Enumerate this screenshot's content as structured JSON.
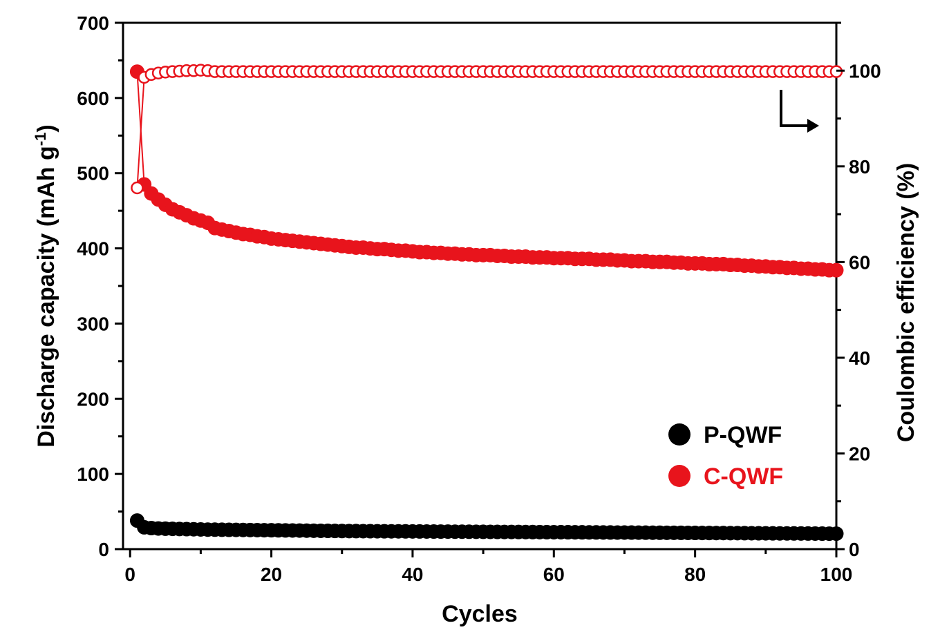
{
  "chart_data": {
    "type": "scatter",
    "xlabel": "Cycles",
    "ylabel_left": {
      "main": "Discharge capacity (mAh g",
      "superscript": "-1",
      "close": ")"
    },
    "ylabel_right": "Coulombic efficiency (%)",
    "xlim": [
      -1,
      100
    ],
    "ylim_left": [
      0,
      700
    ],
    "ylim_right": [
      0,
      110
    ],
    "x_ticks": [
      "0",
      "20",
      "40",
      "60",
      "80",
      "100"
    ],
    "y_left_ticks": [
      "0",
      "100",
      "200",
      "300",
      "400",
      "500",
      "600",
      "700"
    ],
    "y_right_ticks": [
      "0",
      "20",
      "40",
      "60",
      "80",
      "100"
    ],
    "x": [
      1,
      2,
      3,
      4,
      5,
      6,
      7,
      8,
      9,
      10,
      11,
      12,
      13,
      14,
      15,
      16,
      17,
      18,
      19,
      20,
      21,
      22,
      23,
      24,
      25,
      26,
      27,
      28,
      29,
      30,
      31,
      32,
      33,
      34,
      35,
      36,
      37,
      38,
      39,
      40,
      41,
      42,
      43,
      44,
      45,
      46,
      47,
      48,
      49,
      50,
      51,
      52,
      53,
      54,
      55,
      56,
      57,
      58,
      59,
      60,
      61,
      62,
      63,
      64,
      65,
      66,
      67,
      68,
      69,
      70,
      71,
      72,
      73,
      74,
      75,
      76,
      77,
      78,
      79,
      80,
      81,
      82,
      83,
      84,
      85,
      86,
      87,
      88,
      89,
      90,
      91,
      92,
      93,
      94,
      95,
      96,
      97,
      98,
      99,
      100
    ],
    "series": [
      {
        "name": "P-QWF",
        "axis": "left",
        "marker": "filled",
        "color": "#000000",
        "values": [
          38,
          29,
          28,
          27.5,
          27.2,
          27,
          26.8,
          26.6,
          26.4,
          26.2,
          26,
          25.9,
          25.8,
          25.7,
          25.6,
          25.5,
          25.4,
          25.3,
          25.2,
          25.1,
          25,
          24.9,
          24.8,
          24.7,
          24.6,
          24.5,
          24.4,
          24.3,
          24.2,
          24.1,
          24,
          23.95,
          23.9,
          23.85,
          23.8,
          23.75,
          23.7,
          23.65,
          23.6,
          23.55,
          23.5,
          23.45,
          23.4,
          23.35,
          23.3,
          23.25,
          23.2,
          23.15,
          23.1,
          23.05,
          23,
          22.95,
          22.9,
          22.85,
          22.8,
          22.75,
          22.7,
          22.65,
          22.6,
          22.55,
          22.5,
          22.45,
          22.4,
          22.35,
          22.3,
          22.25,
          22.2,
          22.15,
          22.1,
          22.05,
          22,
          21.95,
          21.9,
          21.85,
          21.8,
          21.75,
          21.7,
          21.65,
          21.6,
          21.55,
          21.5,
          21.45,
          21.4,
          21.35,
          21.3,
          21.25,
          21.2,
          21.15,
          21.1,
          21.05,
          21,
          20.95,
          20.9,
          20.85,
          20.8,
          20.75,
          20.7,
          20.65,
          20.6,
          20.6
        ]
      },
      {
        "name": "C-QWF",
        "axis": "left",
        "marker": "filled",
        "color": "#e8141c",
        "values": [
          635,
          485,
          473,
          465,
          458,
          452,
          448,
          444,
          440,
          437,
          434,
          427,
          425,
          423,
          421,
          419,
          418,
          416,
          415,
          413,
          412,
          411,
          410,
          409,
          408,
          407,
          406,
          405,
          404,
          403,
          402,
          401,
          401,
          400,
          399,
          399,
          398,
          397,
          397,
          396,
          395,
          395,
          394,
          394,
          393,
          393,
          392,
          392,
          391,
          391,
          391,
          390,
          390,
          389,
          389,
          389,
          388,
          388,
          388,
          387,
          387,
          387,
          386,
          386,
          386,
          385,
          385,
          385,
          384,
          384,
          383,
          383,
          383,
          382,
          382,
          382,
          381,
          381,
          380,
          380,
          380,
          379,
          379,
          379,
          378,
          378,
          377,
          377,
          376,
          376,
          375,
          375,
          374,
          374,
          373,
          373,
          372,
          372,
          371,
          371
        ]
      },
      {
        "name": "C-QWF Coulombic efficiency",
        "axis": "right",
        "marker": "open",
        "color": "#e8141c",
        "values": [
          75.5,
          98.6,
          99.2,
          99.5,
          99.7,
          99.8,
          99.9,
          100,
          100,
          100.1,
          100,
          99.8,
          99.8,
          99.8,
          99.8,
          99.8,
          99.8,
          99.8,
          99.8,
          99.8,
          99.8,
          99.8,
          99.8,
          99.8,
          99.8,
          99.8,
          99.8,
          99.8,
          99.8,
          99.8,
          99.8,
          99.8,
          99.8,
          99.8,
          99.8,
          99.8,
          99.8,
          99.8,
          99.8,
          99.8,
          99.8,
          99.8,
          99.8,
          99.8,
          99.8,
          99.8,
          99.8,
          99.8,
          99.8,
          99.8,
          99.8,
          99.8,
          99.8,
          99.8,
          99.8,
          99.8,
          99.8,
          99.8,
          99.8,
          99.8,
          99.8,
          99.8,
          99.8,
          99.8,
          99.8,
          99.8,
          99.8,
          99.8,
          99.8,
          99.8,
          99.8,
          99.8,
          99.8,
          99.8,
          99.8,
          99.8,
          99.8,
          99.8,
          99.8,
          99.8,
          99.8,
          99.8,
          99.8,
          99.8,
          99.8,
          99.8,
          99.8,
          99.8,
          99.8,
          99.8,
          99.8,
          99.8,
          99.8,
          99.8,
          99.8,
          99.8,
          99.8,
          99.8,
          99.8,
          99.8
        ]
      }
    ],
    "legend": {
      "position": "bottom-right",
      "entries": [
        {
          "label": "P-QWF",
          "color": "#000000"
        },
        {
          "label": "C-QWF",
          "color": "#e8141c"
        }
      ]
    },
    "annotation": {
      "type": "arrow",
      "direction": "right",
      "meaning": "efficiency series refers to right axis"
    }
  }
}
